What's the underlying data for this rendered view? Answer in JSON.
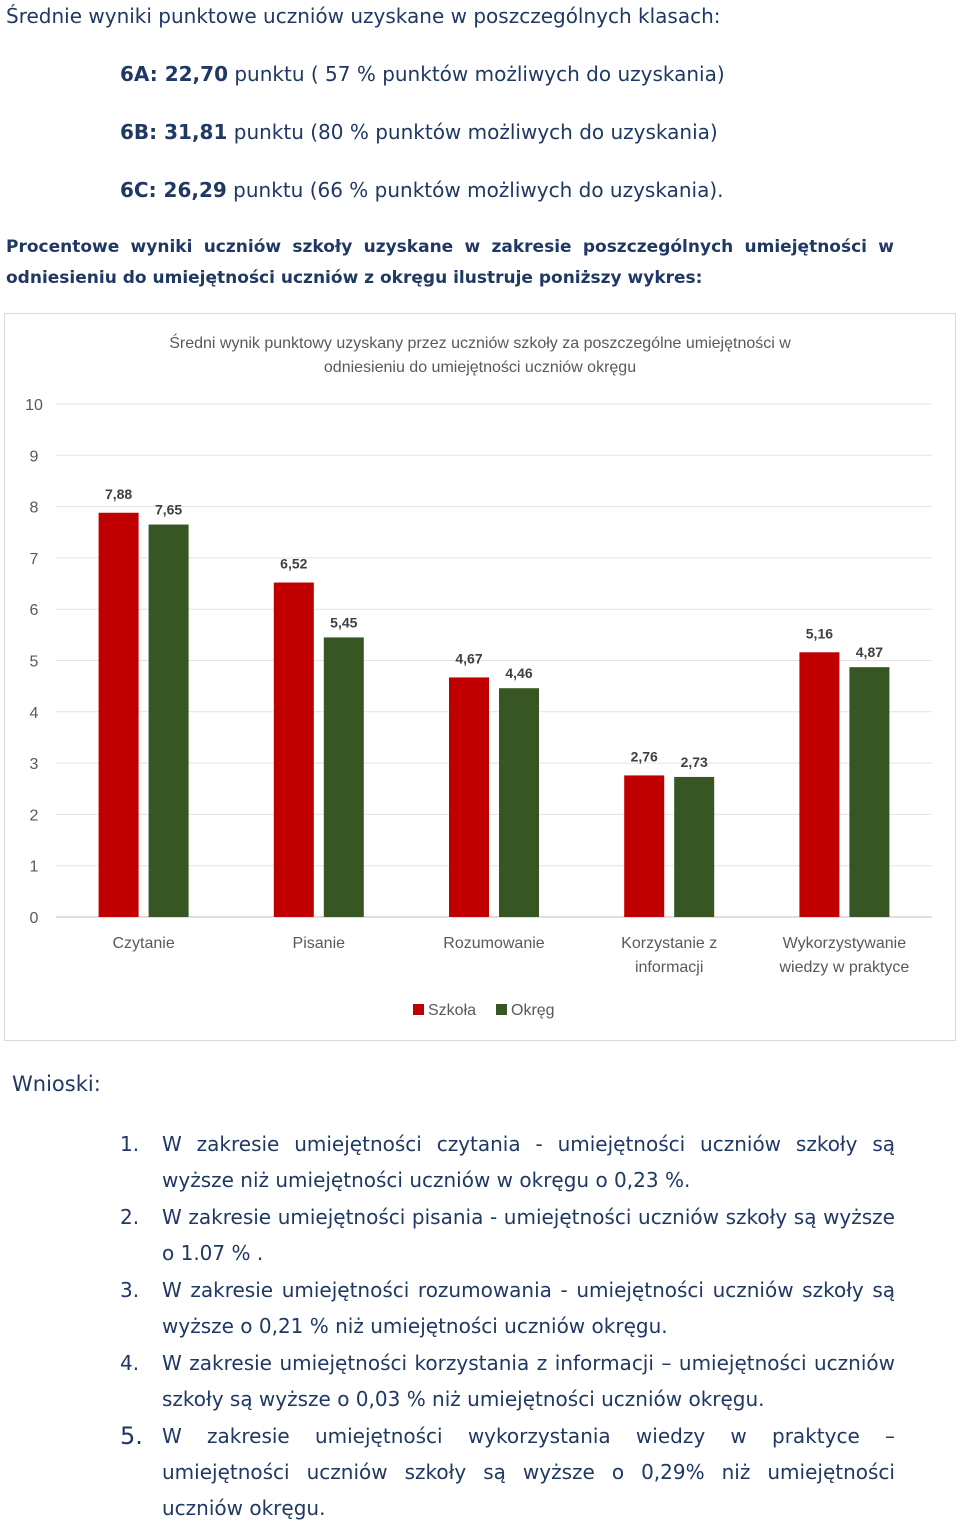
{
  "heading": "Średnie wyniki punktowe uczniów uzyskane w poszczególnych klasach:",
  "class_results": [
    {
      "label": "6A: 22,70",
      "rest": " punktu ( 57 % punktów możliwych do uzyskania)"
    },
    {
      "label": "6B: 31,81",
      "rest": " punktu (80 % punktów możliwych do uzyskania)"
    },
    {
      "label": "6C: 26,29",
      "rest": " punktu (66 % punktów możliwych do uzyskania)."
    }
  ],
  "intro": "Procentowe wyniki uczniów  szkoły uzyskane w zakresie poszczególnych umiejętności w odniesieniu do umiejętności uczniów z okręgu ilustruje poniższy wykres:",
  "chart_data": {
    "type": "bar",
    "title": "Średni wynik punktowy uzyskany przez uczniów szkoły za poszczególne umiejętności w odniesieniu do umiejętności uczniów okręgu",
    "categories": [
      "Czytanie",
      "Pisanie",
      "Rozumowanie",
      "Korzystanie z informacji",
      "Wykorzystywanie wiedzy w praktyce"
    ],
    "series": [
      {
        "name": "Szkoła",
        "color": "#c00000",
        "values": [
          7.88,
          6.52,
          4.67,
          2.76,
          5.16
        ],
        "labels": [
          "7,88",
          "6,52",
          "4,67",
          "2,76",
          "5,16"
        ]
      },
      {
        "name": "Okręg",
        "color": "#375623",
        "values": [
          7.65,
          5.45,
          4.46,
          2.73,
          4.87
        ],
        "labels": [
          "7,65",
          "5,45",
          "4,46",
          "2,73",
          "4,87"
        ]
      }
    ],
    "ylim": [
      0,
      10
    ],
    "yticks": [
      0,
      1,
      2,
      3,
      4,
      5,
      6,
      7,
      8,
      9,
      10
    ],
    "grid": true,
    "legend": "bottom"
  },
  "wnioski": {
    "title": "Wnioski:",
    "items": [
      {
        "num": "1.",
        "text": "W zakresie umiejętności czytania - umiejętności uczniów szkoły są wyższe niż umiejętności uczniów w okręgu o 0,23 %."
      },
      {
        "num": "2.",
        "text": "W zakresie umiejętności pisania - umiejętności uczniów szkoły są wyższe o 1.07 % ."
      },
      {
        "num": "3.",
        "text": "W zakresie umiejętności rozumowania - umiejętności uczniów szkoły są wyższe o 0,21 % niż umiejętności uczniów okręgu."
      },
      {
        "num": "4.",
        "text": "W zakresie umiejętności korzystania z informacji – umiejętności uczniów szkoły są wyższe o 0,03 % niż umiejętności uczniów okręgu."
      },
      {
        "num": "5.",
        "text": "W zakresie umiejętności wykorzystania wiedzy w praktyce – umiejętności uczniów szkoły są wyższe o 0,29% niż umiejętności uczniów okręgu."
      }
    ]
  }
}
